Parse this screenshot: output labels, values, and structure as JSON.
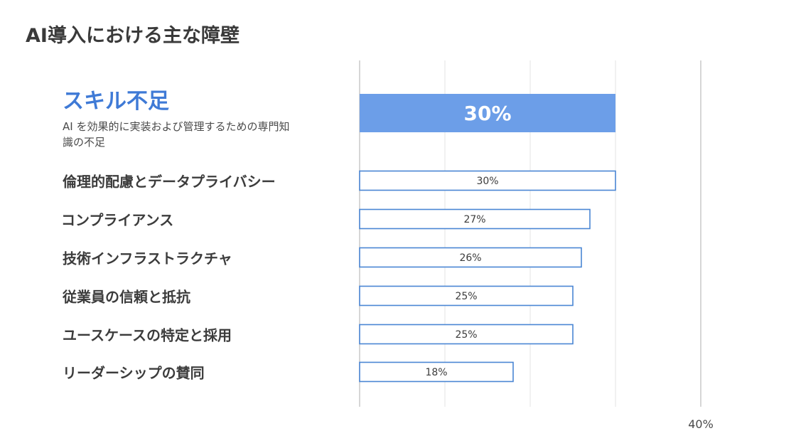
{
  "title": "AI導入における主な障壁",
  "highlight": {
    "description": "AI を効果的に実装および管理するための専門知識の不足"
  },
  "colors": {
    "highlight_fill": "#6c9ee8",
    "bar_stroke": "#4a86d4",
    "bar_fill": "#ffffff",
    "highlight_text": "#3f7ad6",
    "grid": "#e3e3e3",
    "axis": "#c8c8c8"
  },
  "chart_data": {
    "type": "bar",
    "orientation": "horizontal",
    "title": "AI導入における主な障壁",
    "categories": [
      "スキル不足",
      "倫理的配慮とデータプライバシー",
      "コンプライアンス",
      "技術インフラストラクチャ",
      "従業員の信頼と抵抗",
      "ユースケースの特定と採用",
      "リーダーシップの賛同"
    ],
    "values": [
      30,
      30,
      27,
      26,
      25,
      25,
      18
    ],
    "value_labels": [
      "30%",
      "30%",
      "27%",
      "26%",
      "25%",
      "25%",
      "18%"
    ],
    "highlighted_index": 0,
    "xlim": [
      0,
      40
    ],
    "x_tick_labels": [
      "",
      "",
      "",
      "",
      "40%"
    ],
    "grid": true,
    "legend": "none"
  }
}
